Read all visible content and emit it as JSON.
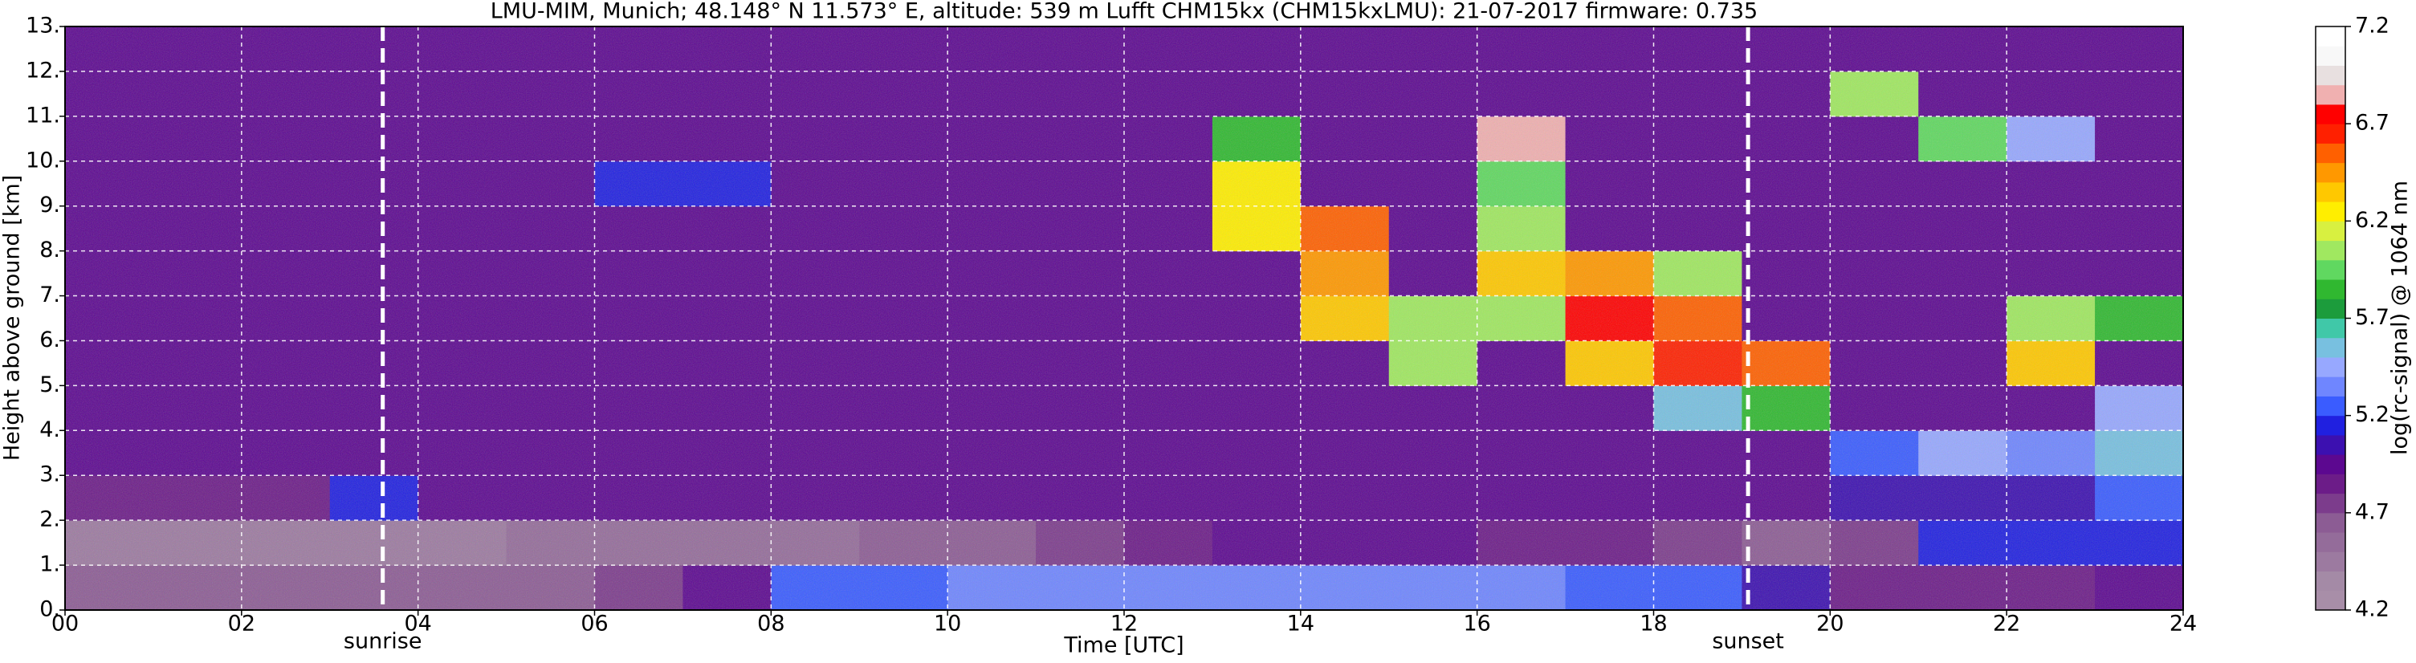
{
  "chart_data": {
    "type": "heatmap",
    "title": "LMU-MIM, Munich; 48.148° N 11.573° E, altitude: 539 m    Lufft CHM15kx (CHM15kxLMU): 21-07-2017    firmware: 0.735",
    "xlabel": "Time [UTC]",
    "ylabel": "Height above ground [km]",
    "xlim": [
      0,
      24
    ],
    "xticks": [
      {
        "value": 0,
        "label": "00"
      },
      {
        "value": 2,
        "label": "02"
      },
      {
        "value": 4,
        "label": "04"
      },
      {
        "value": 6,
        "label": "06"
      },
      {
        "value": 8,
        "label": "08"
      },
      {
        "value": 10,
        "label": "10"
      },
      {
        "value": 12,
        "label": "12"
      },
      {
        "value": 14,
        "label": "14"
      },
      {
        "value": 16,
        "label": "16"
      },
      {
        "value": 18,
        "label": "18"
      },
      {
        "value": 20,
        "label": "20"
      },
      {
        "value": 22,
        "label": "22"
      },
      {
        "value": 24,
        "label": "24"
      }
    ],
    "ylim": [
      0,
      13
    ],
    "yticks": [
      {
        "value": 0,
        "label": "0."
      },
      {
        "value": 1,
        "label": "1."
      },
      {
        "value": 2,
        "label": "2."
      },
      {
        "value": 3,
        "label": "3."
      },
      {
        "value": 4,
        "label": "4."
      },
      {
        "value": 5,
        "label": "5."
      },
      {
        "value": 6,
        "label": "6."
      },
      {
        "value": 7,
        "label": "7."
      },
      {
        "value": 8,
        "label": "8."
      },
      {
        "value": 9,
        "label": "9."
      },
      {
        "value": 10,
        "label": "10."
      },
      {
        "value": 11,
        "label": "11."
      },
      {
        "value": 12,
        "label": "12."
      },
      {
        "value": 13,
        "label": "13."
      }
    ],
    "grid": true,
    "xbins": [
      0,
      1,
      2,
      3,
      4,
      5,
      6,
      7,
      8,
      9,
      10,
      11,
      12,
      13,
      14,
      15,
      16,
      17,
      18,
      19,
      20,
      21,
      22,
      23,
      24
    ],
    "ybins": [
      0,
      1,
      2,
      3,
      4,
      5,
      6,
      7,
      8,
      9,
      10,
      11,
      12,
      13
    ],
    "z": [
      [
        4.6,
        4.6,
        4.6,
        4.6,
        4.6,
        4.6,
        4.7,
        4.9,
        5.2,
        5.2,
        5.3,
        5.3,
        5.3,
        5.3,
        5.3,
        5.3,
        5.3,
        5.2,
        5.2,
        5.0,
        4.8,
        4.8,
        4.8,
        4.9
      ],
      [
        4.4,
        4.4,
        4.4,
        4.4,
        4.4,
        4.5,
        4.5,
        4.5,
        4.5,
        4.6,
        4.6,
        4.7,
        4.8,
        4.9,
        4.9,
        4.9,
        4.8,
        4.8,
        4.7,
        4.6,
        4.7,
        5.1,
        5.1,
        5.1
      ],
      [
        4.8,
        4.8,
        4.8,
        5.1,
        4.9,
        4.9,
        4.9,
        4.9,
        4.9,
        4.9,
        4.9,
        4.9,
        4.9,
        4.9,
        4.9,
        4.9,
        4.9,
        4.9,
        4.9,
        4.9,
        5.0,
        5.0,
        5.0,
        5.2
      ],
      [
        4.9,
        4.9,
        4.9,
        4.9,
        4.9,
        4.9,
        4.9,
        4.9,
        4.9,
        4.9,
        4.9,
        4.9,
        4.9,
        4.9,
        4.9,
        4.9,
        4.9,
        4.9,
        4.9,
        4.9,
        5.2,
        5.4,
        5.3,
        5.5
      ],
      [
        4.9,
        4.9,
        4.9,
        4.9,
        4.9,
        4.9,
        4.9,
        4.9,
        4.9,
        4.9,
        4.9,
        4.9,
        4.9,
        4.9,
        4.9,
        4.9,
        4.9,
        4.9,
        5.5,
        5.8,
        4.9,
        4.9,
        4.9,
        5.4
      ],
      [
        4.9,
        4.9,
        4.9,
        4.9,
        4.9,
        4.9,
        4.9,
        4.9,
        4.9,
        4.9,
        4.9,
        4.9,
        4.9,
        4.9,
        4.9,
        6.0,
        4.9,
        6.3,
        6.6,
        6.5,
        4.9,
        4.9,
        6.3,
        4.9
      ],
      [
        4.9,
        4.9,
        4.9,
        4.9,
        4.9,
        4.9,
        4.9,
        4.9,
        4.9,
        4.9,
        4.9,
        4.9,
        4.9,
        4.9,
        6.3,
        6.0,
        6.0,
        6.7,
        6.5,
        4.9,
        4.9,
        4.9,
        6.0,
        5.8
      ],
      [
        4.9,
        4.9,
        4.9,
        4.9,
        4.9,
        4.9,
        4.9,
        4.9,
        4.9,
        4.9,
        4.9,
        4.9,
        4.9,
        4.9,
        6.4,
        4.9,
        6.3,
        6.4,
        6.0,
        4.9,
        4.9,
        4.9,
        4.9,
        4.9
      ],
      [
        4.9,
        4.9,
        4.9,
        4.9,
        4.9,
        4.9,
        4.9,
        4.9,
        4.9,
        4.9,
        4.9,
        4.9,
        4.9,
        6.2,
        6.5,
        4.9,
        6.0,
        4.9,
        4.9,
        4.9,
        4.9,
        4.9,
        4.9,
        4.9
      ],
      [
        4.9,
        4.9,
        4.9,
        4.9,
        4.9,
        4.9,
        5.1,
        5.1,
        4.9,
        4.9,
        4.9,
        4.9,
        4.9,
        6.2,
        4.9,
        4.9,
        5.9,
        4.9,
        4.9,
        4.9,
        4.9,
        4.9,
        4.9,
        4.9
      ],
      [
        4.9,
        4.9,
        4.9,
        4.9,
        4.9,
        4.9,
        4.9,
        4.9,
        4.9,
        4.9,
        4.9,
        4.9,
        4.9,
        5.8,
        4.9,
        4.9,
        6.8,
        4.9,
        4.9,
        4.9,
        4.9,
        5.9,
        5.4,
        4.9
      ],
      [
        4.9,
        4.9,
        4.9,
        4.9,
        4.9,
        4.9,
        4.9,
        4.9,
        4.9,
        4.9,
        4.9,
        4.9,
        4.9,
        4.9,
        4.9,
        4.9,
        4.9,
        4.9,
        4.9,
        4.9,
        6.0,
        4.9,
        4.9,
        4.9
      ],
      [
        4.9,
        4.9,
        4.9,
        4.9,
        4.9,
        4.9,
        4.9,
        4.9,
        4.9,
        4.9,
        4.9,
        4.9,
        4.9,
        4.9,
        4.9,
        4.9,
        4.9,
        4.9,
        4.9,
        4.9,
        4.9,
        4.9,
        4.9,
        4.9
      ]
    ],
    "colorbar": {
      "label": "log(rc-signal) @ 1064 nm",
      "clim": [
        4.2,
        7.2
      ],
      "ticks": [
        4.2,
        4.7,
        5.2,
        5.7,
        6.2,
        6.7,
        7.2
      ],
      "colors": [
        "#a88ea8",
        "#a48aa6",
        "#9c7aa0",
        "#946c9a",
        "#8c5c94",
        "#7c3c8c",
        "#6c1c88",
        "#5c0890",
        "#3c10b0",
        "#2020e0",
        "#3a5cff",
        "#6f86ff",
        "#97a8ff",
        "#78c0e0",
        "#40c8a8",
        "#1c9c3c",
        "#30b830",
        "#60d860",
        "#a0e860",
        "#d8f040",
        "#ffee00",
        "#ffc800",
        "#ff9800",
        "#ff6000",
        "#ff2000",
        "#ff0000",
        "#f0b0b0",
        "#e8e0e0",
        "#f8f8f8",
        "#ffffff"
      ]
    },
    "annotations": [
      {
        "x": 3.6,
        "text": "sunrise"
      },
      {
        "x": 19.07,
        "text": "sunset"
      }
    ]
  }
}
